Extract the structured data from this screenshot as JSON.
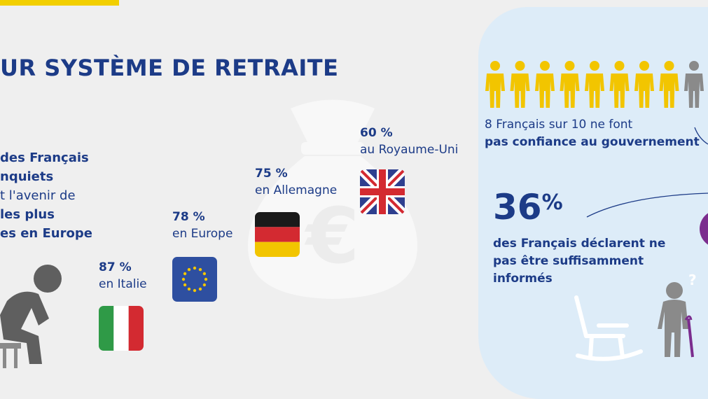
{
  "title": "UR SYSTÈME DE RETRAITE",
  "left_text": {
    "line1": "des Français",
    "line2": "nquiets",
    "line3": "t l'avenir de",
    "line4": "les plus",
    "line5": "es en Europe"
  },
  "stats": [
    {
      "pct": "87 %",
      "place": "en Italie",
      "flag": "italy-flag"
    },
    {
      "pct": "78 %",
      "place": "en Europe",
      "flag": "eu-flag"
    },
    {
      "pct": "75 %",
      "place": "en Allemagne",
      "flag": "germany-flag"
    },
    {
      "pct": "60 %",
      "place": "au Royaume-Uni",
      "flag": "uk-flag"
    }
  ],
  "panel": {
    "trust_line1": "8 Français sur 10 ne font",
    "trust_line2": "pas confiance au gouvernement",
    "big_value": "36",
    "big_unit": "%",
    "informed_line1": "des Français déclarent ne",
    "informed_line2": "pas être suffisamment",
    "informed_line3": "informés",
    "people_count_yellow": 8,
    "people_count_total": 10
  },
  "colors": {
    "navy": "#1c3b87",
    "yellow": "#f2c500",
    "grey_person": "#8a8a8a",
    "panel_bg": "#ddecf8",
    "purple_accent": "#7b2d8e"
  }
}
